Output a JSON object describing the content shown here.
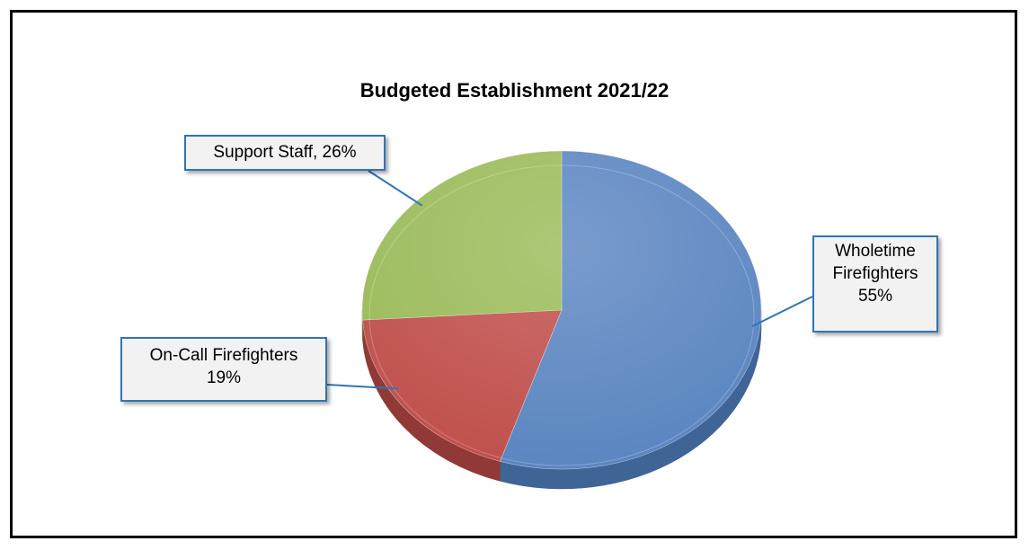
{
  "chart_data": {
    "type": "pie",
    "title": "Budgeted Establishment 2021/22",
    "slices": [
      {
        "name": "Wholetime Firefighters",
        "value": 55,
        "label_lines": [
          "Wholetime",
          "Firefighters",
          "55%"
        ],
        "color": "#5b86c1",
        "side_color": "#3f6496"
      },
      {
        "name": "On-Call Firefighters",
        "value": 19,
        "label_lines": [
          "On-Call Firefighters",
          "19%"
        ],
        "color": "#c0504d",
        "side_color": "#913936"
      },
      {
        "name": "Support Staff",
        "value": 26,
        "label_lines": [
          "Support Staff, 26%"
        ],
        "color": "#9bbb59",
        "side_color": "#728a40"
      }
    ],
    "legend": "none",
    "three_d": true,
    "label_border_color": "#2e75b6"
  }
}
